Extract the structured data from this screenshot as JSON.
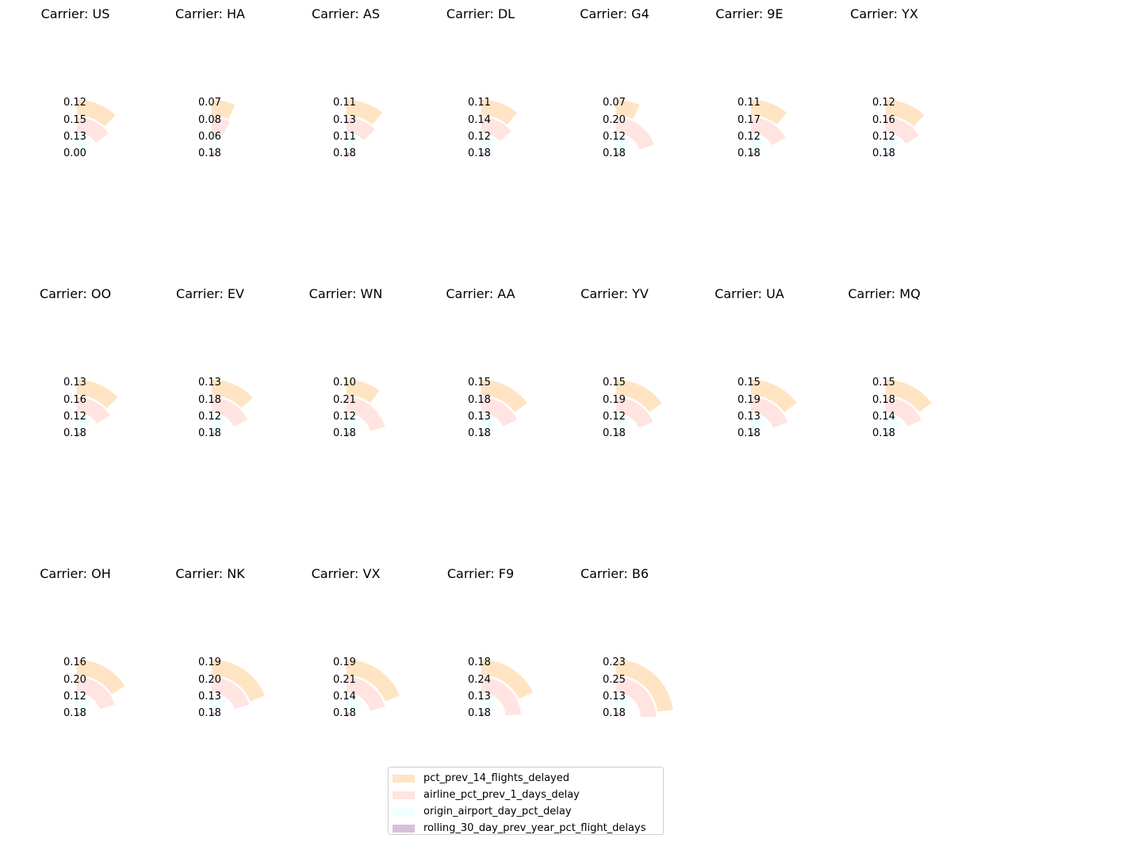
{
  "chart_data": {
    "type": "radial-bar",
    "series": [
      {
        "name": "pct_prev_14_flights_delayed",
        "color": "#ffe4c4"
      },
      {
        "name": "airline_pct_prev_1_days_delay",
        "color": "#ffe4e1"
      },
      {
        "name": "origin_airport_day_pct_delay",
        "color": "#f0ffff"
      },
      {
        "name": "rolling_30_day_prev_year_pct_flight_delays",
        "color": "#d8bfd8"
      }
    ],
    "panels": [
      {
        "title": "Carrier: US",
        "values": [
          0.12,
          0.15,
          0.13,
          0.0
        ]
      },
      {
        "title": "Carrier: HA",
        "values": [
          0.07,
          0.08,
          0.06,
          0.18
        ]
      },
      {
        "title": "Carrier: AS",
        "values": [
          0.11,
          0.13,
          0.11,
          0.18
        ]
      },
      {
        "title": "Carrier: DL",
        "values": [
          0.11,
          0.14,
          0.12,
          0.18
        ]
      },
      {
        "title": "Carrier: G4",
        "values": [
          0.07,
          0.2,
          0.12,
          0.18
        ]
      },
      {
        "title": "Carrier: 9E",
        "values": [
          0.11,
          0.17,
          0.12,
          0.18
        ]
      },
      {
        "title": "Carrier: YX",
        "values": [
          0.12,
          0.16,
          0.12,
          0.18
        ]
      },
      {
        "title": "Carrier: OO",
        "values": [
          0.13,
          0.16,
          0.12,
          0.18
        ]
      },
      {
        "title": "Carrier: EV",
        "values": [
          0.13,
          0.18,
          0.12,
          0.18
        ]
      },
      {
        "title": "Carrier: WN",
        "values": [
          0.1,
          0.21,
          0.12,
          0.18
        ]
      },
      {
        "title": "Carrier: AA",
        "values": [
          0.15,
          0.18,
          0.13,
          0.18
        ]
      },
      {
        "title": "Carrier: YV",
        "values": [
          0.15,
          0.19,
          0.12,
          0.18
        ]
      },
      {
        "title": "Carrier: UA",
        "values": [
          0.15,
          0.19,
          0.13,
          0.18
        ]
      },
      {
        "title": "Carrier: MQ",
        "values": [
          0.15,
          0.18,
          0.14,
          0.18
        ]
      },
      {
        "title": "Carrier: OH",
        "values": [
          0.16,
          0.2,
          0.12,
          0.18
        ]
      },
      {
        "title": "Carrier: NK",
        "values": [
          0.19,
          0.2,
          0.13,
          0.18
        ]
      },
      {
        "title": "Carrier: VX",
        "values": [
          0.19,
          0.21,
          0.14,
          0.18
        ]
      },
      {
        "title": "Carrier: F9",
        "values": [
          0.18,
          0.24,
          0.13,
          0.18
        ]
      },
      {
        "title": "Carrier: B6",
        "values": [
          0.23,
          0.25,
          0.13,
          0.18
        ]
      }
    ],
    "grid": false,
    "legend_position": "bottom-center"
  }
}
